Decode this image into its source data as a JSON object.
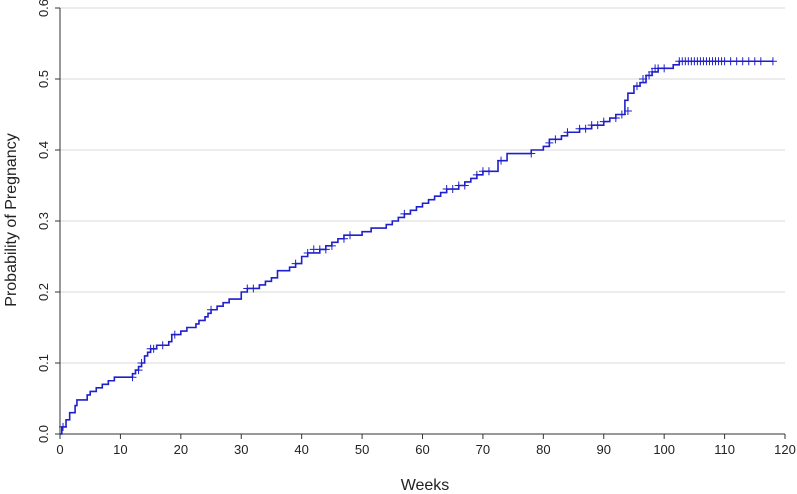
{
  "chart_data": {
    "type": "line",
    "xlabel": "Weeks",
    "ylabel": "Probability of Pregnancy",
    "xlim": [
      0,
      120
    ],
    "ylim": [
      0,
      0.6
    ],
    "x_ticks": [
      "0",
      "10",
      "20",
      "30",
      "40",
      "50",
      "60",
      "70",
      "80",
      "90",
      "100",
      "110",
      "120"
    ],
    "y_ticks": [
      "0.0",
      "0.1",
      "0.2",
      "0.3",
      "0.4",
      "0.5",
      "0.6"
    ],
    "grid": "horizontal",
    "line_color": "#1f1fcc",
    "series": [
      {
        "step_points": [
          [
            0,
            0.0
          ],
          [
            0.3,
            0.01
          ],
          [
            1,
            0.02
          ],
          [
            1.6,
            0.03
          ],
          [
            2.5,
            0.04
          ],
          [
            2.8,
            0.048
          ],
          [
            4.5,
            0.055
          ],
          [
            5,
            0.06
          ],
          [
            6,
            0.065
          ],
          [
            7,
            0.07
          ],
          [
            8,
            0.075
          ],
          [
            9,
            0.08
          ],
          [
            12,
            0.085
          ],
          [
            12.5,
            0.09
          ],
          [
            13,
            0.095
          ],
          [
            13.5,
            0.1
          ],
          [
            14,
            0.11
          ],
          [
            14.5,
            0.115
          ],
          [
            15,
            0.12
          ],
          [
            16,
            0.125
          ],
          [
            18,
            0.13
          ],
          [
            18.5,
            0.14
          ],
          [
            20,
            0.145
          ],
          [
            21,
            0.15
          ],
          [
            22.5,
            0.155
          ],
          [
            23,
            0.16
          ],
          [
            24,
            0.165
          ],
          [
            24.5,
            0.17
          ],
          [
            25,
            0.175
          ],
          [
            26,
            0.18
          ],
          [
            27,
            0.185
          ],
          [
            28,
            0.19
          ],
          [
            30,
            0.2
          ],
          [
            31,
            0.205
          ],
          [
            33,
            0.21
          ],
          [
            34,
            0.215
          ],
          [
            35,
            0.22
          ],
          [
            36,
            0.23
          ],
          [
            38,
            0.235
          ],
          [
            39,
            0.24
          ],
          [
            40,
            0.25
          ],
          [
            41,
            0.255
          ],
          [
            43,
            0.26
          ],
          [
            44,
            0.265
          ],
          [
            45,
            0.27
          ],
          [
            46,
            0.275
          ],
          [
            47,
            0.28
          ],
          [
            50,
            0.285
          ],
          [
            51.5,
            0.29
          ],
          [
            54,
            0.295
          ],
          [
            55,
            0.3
          ],
          [
            56,
            0.305
          ],
          [
            57,
            0.31
          ],
          [
            58,
            0.315
          ],
          [
            59,
            0.32
          ],
          [
            60,
            0.325
          ],
          [
            61,
            0.33
          ],
          [
            62,
            0.335
          ],
          [
            63,
            0.34
          ],
          [
            64,
            0.345
          ],
          [
            66,
            0.35
          ],
          [
            67,
            0.355
          ],
          [
            68,
            0.36
          ],
          [
            69,
            0.365
          ],
          [
            70,
            0.37
          ],
          [
            72.5,
            0.385
          ],
          [
            74,
            0.395
          ],
          [
            78,
            0.4
          ],
          [
            80,
            0.405
          ],
          [
            81,
            0.415
          ],
          [
            83,
            0.42
          ],
          [
            84,
            0.425
          ],
          [
            86,
            0.43
          ],
          [
            88,
            0.435
          ],
          [
            90,
            0.44
          ],
          [
            91,
            0.445
          ],
          [
            92,
            0.45
          ],
          [
            93.5,
            0.47
          ],
          [
            94,
            0.48
          ],
          [
            95,
            0.49
          ],
          [
            96,
            0.495
          ],
          [
            97,
            0.505
          ],
          [
            98,
            0.51
          ],
          [
            99,
            0.515
          ],
          [
            101.5,
            0.52
          ],
          [
            102.5,
            0.525
          ],
          [
            118,
            0.525
          ]
        ],
        "censor_marks": [
          [
            0.5,
            0.01
          ],
          [
            12,
            0.08
          ],
          [
            13,
            0.09
          ],
          [
            13.5,
            0.1
          ],
          [
            15,
            0.12
          ],
          [
            15.5,
            0.12
          ],
          [
            17,
            0.125
          ],
          [
            19,
            0.14
          ],
          [
            25,
            0.175
          ],
          [
            31,
            0.205
          ],
          [
            32,
            0.205
          ],
          [
            39,
            0.24
          ],
          [
            41,
            0.255
          ],
          [
            42,
            0.26
          ],
          [
            43,
            0.26
          ],
          [
            44,
            0.26
          ],
          [
            45,
            0.265
          ],
          [
            47,
            0.275
          ],
          [
            48,
            0.28
          ],
          [
            57,
            0.31
          ],
          [
            64,
            0.345
          ],
          [
            65,
            0.345
          ],
          [
            66,
            0.35
          ],
          [
            67,
            0.35
          ],
          [
            69,
            0.365
          ],
          [
            70,
            0.37
          ],
          [
            71,
            0.37
          ],
          [
            73,
            0.385
          ],
          [
            78,
            0.395
          ],
          [
            81,
            0.41
          ],
          [
            82,
            0.415
          ],
          [
            84,
            0.425
          ],
          [
            86,
            0.43
          ],
          [
            87,
            0.43
          ],
          [
            88,
            0.435
          ],
          [
            89,
            0.435
          ],
          [
            90,
            0.44
          ],
          [
            92,
            0.445
          ],
          [
            93,
            0.45
          ],
          [
            94,
            0.455
          ],
          [
            95.5,
            0.49
          ],
          [
            96.5,
            0.5
          ],
          [
            97.5,
            0.505
          ],
          [
            98,
            0.51
          ],
          [
            98.5,
            0.515
          ],
          [
            99,
            0.515
          ],
          [
            100,
            0.515
          ],
          [
            102.5,
            0.525
          ],
          [
            103,
            0.525
          ],
          [
            103.5,
            0.525
          ],
          [
            104,
            0.525
          ],
          [
            104.5,
            0.525
          ],
          [
            105,
            0.525
          ],
          [
            105.5,
            0.525
          ],
          [
            106,
            0.525
          ],
          [
            106.5,
            0.525
          ],
          [
            107,
            0.525
          ],
          [
            107.5,
            0.525
          ],
          [
            108,
            0.525
          ],
          [
            108.5,
            0.525
          ],
          [
            109,
            0.525
          ],
          [
            109.5,
            0.525
          ],
          [
            110,
            0.525
          ],
          [
            111,
            0.525
          ],
          [
            112,
            0.525
          ],
          [
            113,
            0.525
          ],
          [
            114,
            0.525
          ],
          [
            115,
            0.525
          ],
          [
            116,
            0.525
          ],
          [
            118,
            0.525
          ]
        ]
      }
    ]
  }
}
